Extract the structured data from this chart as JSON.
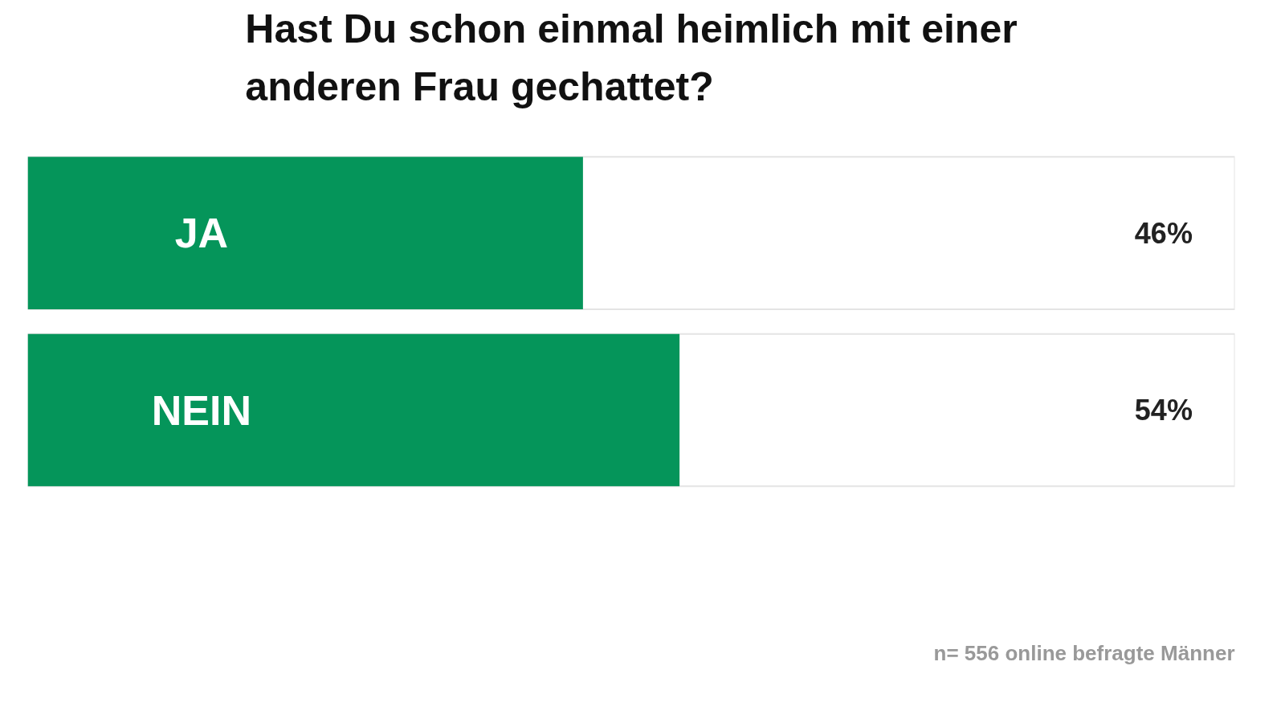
{
  "chart_data": {
    "type": "bar",
    "orientation": "horizontal",
    "title": "Hast Du schon einmal heimlich mit einer\nanderen Frau gechattet?",
    "categories": [
      "JA",
      "NEIN"
    ],
    "values": [
      46,
      54
    ],
    "value_labels": [
      "46%",
      "54%"
    ],
    "color": "#05955a",
    "xlim": [
      0,
      100
    ],
    "annotations": [
      "n= 556 online befragte Männer"
    ]
  }
}
